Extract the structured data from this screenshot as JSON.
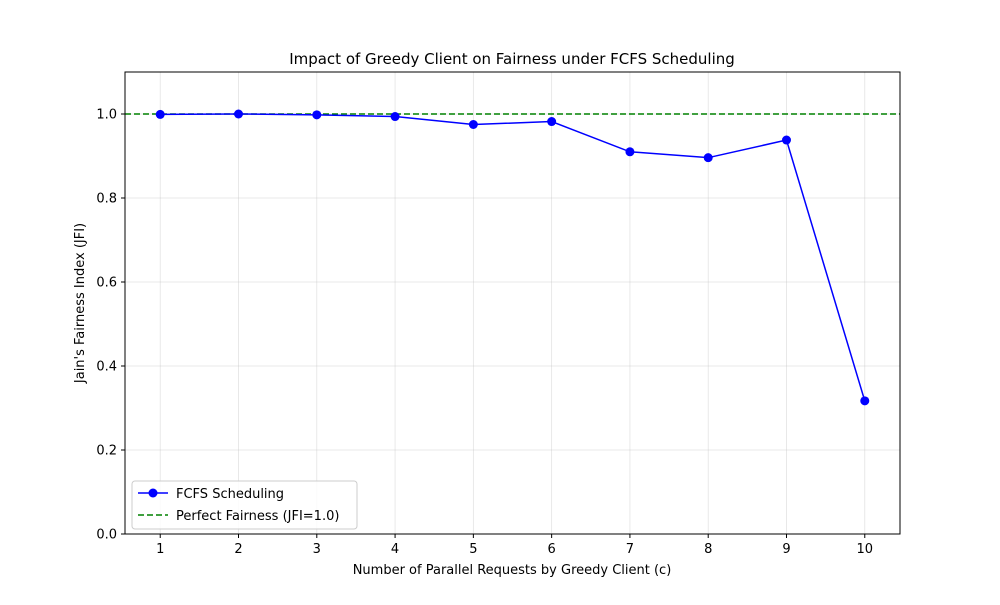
{
  "chart_data": {
    "type": "line",
    "title": "Impact of Greedy Client on Fairness under FCFS Scheduling",
    "xlabel": "Number of Parallel Requests by Greedy Client (c)",
    "ylabel": "Jain's Fairness Index (JFI)",
    "x": [
      1,
      2,
      3,
      4,
      5,
      6,
      7,
      8,
      9,
      10
    ],
    "xlim": [
      0.55,
      10.45
    ],
    "ylim": [
      0,
      1.1
    ],
    "xticks": [
      "1",
      "2",
      "3",
      "4",
      "5",
      "6",
      "7",
      "8",
      "9",
      "10"
    ],
    "yticks": [
      {
        "value": 0.0,
        "label": "0.0"
      },
      {
        "value": 0.2,
        "label": "0.2"
      },
      {
        "value": 0.4,
        "label": "0.4"
      },
      {
        "value": 0.6,
        "label": "0.6"
      },
      {
        "value": 0.8,
        "label": "0.8"
      },
      {
        "value": 1.0,
        "label": "1.0"
      }
    ],
    "grid": true,
    "legend_position": "lower-left",
    "series": [
      {
        "name": "FCFS Scheduling",
        "color": "#0000ff",
        "marker": "circle",
        "style": "solid",
        "values": [
          0.999,
          1.0,
          0.998,
          0.994,
          0.975,
          0.982,
          0.91,
          0.896,
          0.938,
          0.317
        ]
      }
    ],
    "reference_lines": [
      {
        "name": "Perfect Fairness (JFI=1.0)",
        "color": "#008000",
        "style": "dashed",
        "y": 1.0
      }
    ]
  }
}
